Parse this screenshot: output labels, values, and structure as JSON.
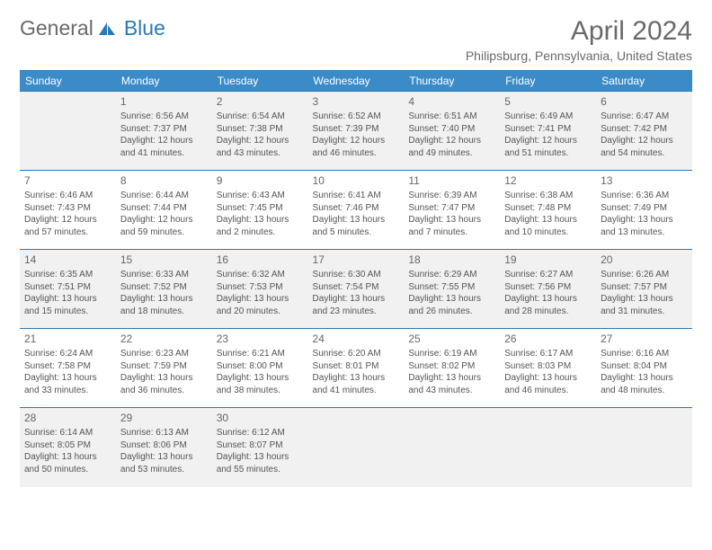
{
  "logo": {
    "text1": "General",
    "text2": "Blue"
  },
  "title": "April 2024",
  "location": "Philipsburg, Pennsylvania, United States",
  "colors": {
    "header_bg": "#3b8bc8",
    "header_border": "#2a7ab8",
    "row_alt_bg": "#f1f1f1",
    "text": "#555555",
    "title_text": "#6a6a6a"
  },
  "weekdays": [
    "Sunday",
    "Monday",
    "Tuesday",
    "Wednesday",
    "Thursday",
    "Friday",
    "Saturday"
  ],
  "weeks": [
    [
      null,
      {
        "d": "1",
        "sr": "Sunrise: 6:56 AM",
        "ss": "Sunset: 7:37 PM",
        "dl1": "Daylight: 12 hours",
        "dl2": "and 41 minutes."
      },
      {
        "d": "2",
        "sr": "Sunrise: 6:54 AM",
        "ss": "Sunset: 7:38 PM",
        "dl1": "Daylight: 12 hours",
        "dl2": "and 43 minutes."
      },
      {
        "d": "3",
        "sr": "Sunrise: 6:52 AM",
        "ss": "Sunset: 7:39 PM",
        "dl1": "Daylight: 12 hours",
        "dl2": "and 46 minutes."
      },
      {
        "d": "4",
        "sr": "Sunrise: 6:51 AM",
        "ss": "Sunset: 7:40 PM",
        "dl1": "Daylight: 12 hours",
        "dl2": "and 49 minutes."
      },
      {
        "d": "5",
        "sr": "Sunrise: 6:49 AM",
        "ss": "Sunset: 7:41 PM",
        "dl1": "Daylight: 12 hours",
        "dl2": "and 51 minutes."
      },
      {
        "d": "6",
        "sr": "Sunrise: 6:47 AM",
        "ss": "Sunset: 7:42 PM",
        "dl1": "Daylight: 12 hours",
        "dl2": "and 54 minutes."
      }
    ],
    [
      {
        "d": "7",
        "sr": "Sunrise: 6:46 AM",
        "ss": "Sunset: 7:43 PM",
        "dl1": "Daylight: 12 hours",
        "dl2": "and 57 minutes."
      },
      {
        "d": "8",
        "sr": "Sunrise: 6:44 AM",
        "ss": "Sunset: 7:44 PM",
        "dl1": "Daylight: 12 hours",
        "dl2": "and 59 minutes."
      },
      {
        "d": "9",
        "sr": "Sunrise: 6:43 AM",
        "ss": "Sunset: 7:45 PM",
        "dl1": "Daylight: 13 hours",
        "dl2": "and 2 minutes."
      },
      {
        "d": "10",
        "sr": "Sunrise: 6:41 AM",
        "ss": "Sunset: 7:46 PM",
        "dl1": "Daylight: 13 hours",
        "dl2": "and 5 minutes."
      },
      {
        "d": "11",
        "sr": "Sunrise: 6:39 AM",
        "ss": "Sunset: 7:47 PM",
        "dl1": "Daylight: 13 hours",
        "dl2": "and 7 minutes."
      },
      {
        "d": "12",
        "sr": "Sunrise: 6:38 AM",
        "ss": "Sunset: 7:48 PM",
        "dl1": "Daylight: 13 hours",
        "dl2": "and 10 minutes."
      },
      {
        "d": "13",
        "sr": "Sunrise: 6:36 AM",
        "ss": "Sunset: 7:49 PM",
        "dl1": "Daylight: 13 hours",
        "dl2": "and 13 minutes."
      }
    ],
    [
      {
        "d": "14",
        "sr": "Sunrise: 6:35 AM",
        "ss": "Sunset: 7:51 PM",
        "dl1": "Daylight: 13 hours",
        "dl2": "and 15 minutes."
      },
      {
        "d": "15",
        "sr": "Sunrise: 6:33 AM",
        "ss": "Sunset: 7:52 PM",
        "dl1": "Daylight: 13 hours",
        "dl2": "and 18 minutes."
      },
      {
        "d": "16",
        "sr": "Sunrise: 6:32 AM",
        "ss": "Sunset: 7:53 PM",
        "dl1": "Daylight: 13 hours",
        "dl2": "and 20 minutes."
      },
      {
        "d": "17",
        "sr": "Sunrise: 6:30 AM",
        "ss": "Sunset: 7:54 PM",
        "dl1": "Daylight: 13 hours",
        "dl2": "and 23 minutes."
      },
      {
        "d": "18",
        "sr": "Sunrise: 6:29 AM",
        "ss": "Sunset: 7:55 PM",
        "dl1": "Daylight: 13 hours",
        "dl2": "and 26 minutes."
      },
      {
        "d": "19",
        "sr": "Sunrise: 6:27 AM",
        "ss": "Sunset: 7:56 PM",
        "dl1": "Daylight: 13 hours",
        "dl2": "and 28 minutes."
      },
      {
        "d": "20",
        "sr": "Sunrise: 6:26 AM",
        "ss": "Sunset: 7:57 PM",
        "dl1": "Daylight: 13 hours",
        "dl2": "and 31 minutes."
      }
    ],
    [
      {
        "d": "21",
        "sr": "Sunrise: 6:24 AM",
        "ss": "Sunset: 7:58 PM",
        "dl1": "Daylight: 13 hours",
        "dl2": "and 33 minutes."
      },
      {
        "d": "22",
        "sr": "Sunrise: 6:23 AM",
        "ss": "Sunset: 7:59 PM",
        "dl1": "Daylight: 13 hours",
        "dl2": "and 36 minutes."
      },
      {
        "d": "23",
        "sr": "Sunrise: 6:21 AM",
        "ss": "Sunset: 8:00 PM",
        "dl1": "Daylight: 13 hours",
        "dl2": "and 38 minutes."
      },
      {
        "d": "24",
        "sr": "Sunrise: 6:20 AM",
        "ss": "Sunset: 8:01 PM",
        "dl1": "Daylight: 13 hours",
        "dl2": "and 41 minutes."
      },
      {
        "d": "25",
        "sr": "Sunrise: 6:19 AM",
        "ss": "Sunset: 8:02 PM",
        "dl1": "Daylight: 13 hours",
        "dl2": "and 43 minutes."
      },
      {
        "d": "26",
        "sr": "Sunrise: 6:17 AM",
        "ss": "Sunset: 8:03 PM",
        "dl1": "Daylight: 13 hours",
        "dl2": "and 46 minutes."
      },
      {
        "d": "27",
        "sr": "Sunrise: 6:16 AM",
        "ss": "Sunset: 8:04 PM",
        "dl1": "Daylight: 13 hours",
        "dl2": "and 48 minutes."
      }
    ],
    [
      {
        "d": "28",
        "sr": "Sunrise: 6:14 AM",
        "ss": "Sunset: 8:05 PM",
        "dl1": "Daylight: 13 hours",
        "dl2": "and 50 minutes."
      },
      {
        "d": "29",
        "sr": "Sunrise: 6:13 AM",
        "ss": "Sunset: 8:06 PM",
        "dl1": "Daylight: 13 hours",
        "dl2": "and 53 minutes."
      },
      {
        "d": "30",
        "sr": "Sunrise: 6:12 AM",
        "ss": "Sunset: 8:07 PM",
        "dl1": "Daylight: 13 hours",
        "dl2": "and 55 minutes."
      },
      null,
      null,
      null,
      null
    ]
  ]
}
